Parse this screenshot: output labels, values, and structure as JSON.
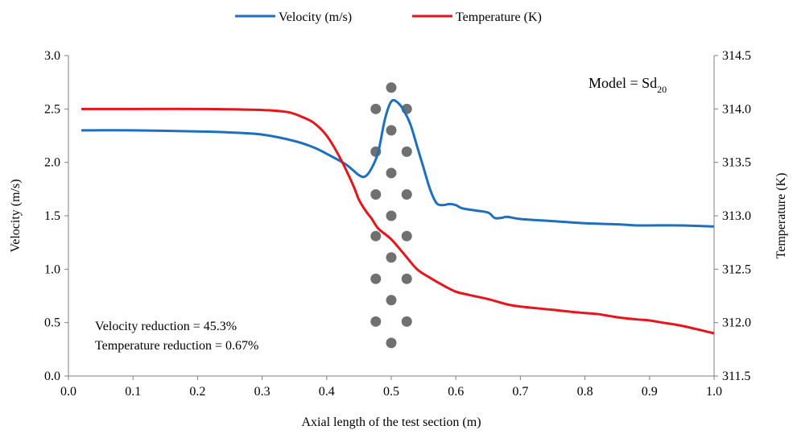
{
  "chart_data": {
    "type": "line",
    "xlabel": "Axial length of the test section (m)",
    "ylabel_left": "Velocity (m/s)",
    "ylabel_right": "Temperature (K)",
    "xlim": [
      0.0,
      1.0
    ],
    "ylim_left": [
      0.0,
      3.0
    ],
    "ylim_right": [
      311.5,
      314.5
    ],
    "x_ticks": [
      "0.0",
      "0.1",
      "0.2",
      "0.3",
      "0.4",
      "0.5",
      "0.6",
      "0.7",
      "0.8",
      "0.9",
      "1.0"
    ],
    "y_left_ticks": [
      "0.0",
      "0.5",
      "1.0",
      "1.5",
      "2.0",
      "2.5",
      "3.0"
    ],
    "y_right_ticks": [
      "311.5",
      "312.0",
      "312.5",
      "313.0",
      "313.5",
      "314.0",
      "314.5"
    ],
    "grid": false,
    "legend_position": "top",
    "series": [
      {
        "name": "Velocity (m/s)",
        "axis": "left",
        "color": "#1f6fbf",
        "x": [
          0.02,
          0.1,
          0.2,
          0.25,
          0.3,
          0.35,
          0.38,
          0.4,
          0.43,
          0.45,
          0.46,
          0.47,
          0.48,
          0.49,
          0.5,
          0.51,
          0.52,
          0.53,
          0.54,
          0.55,
          0.56,
          0.57,
          0.58,
          0.59,
          0.6,
          0.61,
          0.63,
          0.65,
          0.66,
          0.67,
          0.68,
          0.7,
          0.75,
          0.8,
          0.85,
          0.88,
          0.9,
          0.95,
          1.0
        ],
        "y": [
          2.3,
          2.3,
          2.29,
          2.28,
          2.26,
          2.2,
          2.14,
          2.08,
          1.98,
          1.88,
          1.87,
          1.95,
          2.1,
          2.4,
          2.57,
          2.56,
          2.48,
          2.35,
          2.15,
          1.95,
          1.75,
          1.62,
          1.6,
          1.61,
          1.6,
          1.57,
          1.55,
          1.53,
          1.48,
          1.48,
          1.49,
          1.47,
          1.45,
          1.43,
          1.42,
          1.41,
          1.41,
          1.41,
          1.4
        ]
      },
      {
        "name": "Temperature (K)",
        "axis": "right",
        "color": "#e8141c",
        "x": [
          0.02,
          0.1,
          0.2,
          0.3,
          0.34,
          0.36,
          0.38,
          0.4,
          0.42,
          0.44,
          0.45,
          0.46,
          0.47,
          0.48,
          0.5,
          0.52,
          0.54,
          0.56,
          0.58,
          0.6,
          0.62,
          0.65,
          0.68,
          0.7,
          0.75,
          0.78,
          0.8,
          0.82,
          0.85,
          0.88,
          0.9,
          0.92,
          0.95,
          1.0
        ],
        "y": [
          314.0,
          314.0,
          314.0,
          313.99,
          313.97,
          313.93,
          313.87,
          313.75,
          313.55,
          313.3,
          313.15,
          313.05,
          312.97,
          312.88,
          312.78,
          312.64,
          312.5,
          312.42,
          312.35,
          312.29,
          312.26,
          312.22,
          312.17,
          312.15,
          312.12,
          312.1,
          312.09,
          312.08,
          312.05,
          312.03,
          312.02,
          312.0,
          311.97,
          311.9
        ]
      }
    ],
    "annotations": {
      "model_text": "Model = Sd",
      "model_subscript": "20",
      "velocity_reduction": "Velocity reduction = 45.3%",
      "temperature_reduction": "Temperature reduction = 0.67%"
    },
    "obstacles": {
      "color": "#707070",
      "points": [
        {
          "x": 0.5,
          "y": 2.7
        },
        {
          "x": 0.476,
          "y": 2.5
        },
        {
          "x": 0.524,
          "y": 2.5
        },
        {
          "x": 0.5,
          "y": 2.3
        },
        {
          "x": 0.476,
          "y": 2.1
        },
        {
          "x": 0.524,
          "y": 2.1
        },
        {
          "x": 0.5,
          "y": 1.9
        },
        {
          "x": 0.476,
          "y": 1.7
        },
        {
          "x": 0.524,
          "y": 1.7
        },
        {
          "x": 0.5,
          "y": 1.5
        },
        {
          "x": 0.476,
          "y": 1.31
        },
        {
          "x": 0.524,
          "y": 1.31
        },
        {
          "x": 0.5,
          "y": 1.11
        },
        {
          "x": 0.476,
          "y": 0.91
        },
        {
          "x": 0.524,
          "y": 0.91
        },
        {
          "x": 0.5,
          "y": 0.71
        },
        {
          "x": 0.476,
          "y": 0.51
        },
        {
          "x": 0.524,
          "y": 0.51
        },
        {
          "x": 0.5,
          "y": 0.31
        }
      ]
    }
  }
}
